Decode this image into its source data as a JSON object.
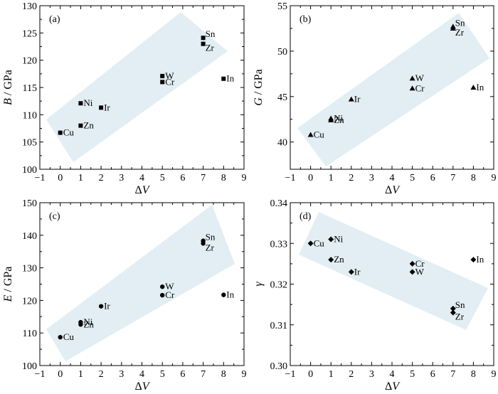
{
  "chart_data": [
    {
      "type": "scatter",
      "panel_label": "(a)",
      "xlabel": "ΔV",
      "ylabel": "B / GPa",
      "ylabel_parts": [
        [
          "B",
          true
        ],
        [
          " / GPa",
          false
        ]
      ],
      "xlim": [
        -1,
        9
      ],
      "ylim": [
        100,
        130
      ],
      "xticks": [
        -1,
        0,
        1,
        2,
        3,
        4,
        5,
        6,
        7,
        8,
        9
      ],
      "yticks": [
        100,
        105,
        110,
        115,
        120,
        125,
        130
      ],
      "marker": "square",
      "points": [
        {
          "label": "Cu",
          "x": 0,
          "y": 106.7
        },
        {
          "label": "Ni",
          "x": 1,
          "y": 112.1
        },
        {
          "label": "Zn",
          "x": 1,
          "y": 108.0
        },
        {
          "label": "Ir",
          "x": 2,
          "y": 111.3
        },
        {
          "label": "W",
          "x": 5,
          "y": 117.1
        },
        {
          "label": "Cr",
          "x": 5,
          "y": 116.0
        },
        {
          "label": "Sn",
          "x": 7,
          "y": 124.1
        },
        {
          "label": "Zr",
          "x": 7,
          "y": 123.0
        },
        {
          "label": "In",
          "x": 8,
          "y": 116.6
        }
      ]
    },
    {
      "type": "scatter",
      "panel_label": "(b)",
      "xlabel": "ΔV",
      "ylabel": "G / GPa",
      "ylabel_parts": [
        [
          "G",
          true
        ],
        [
          " / GPa",
          false
        ]
      ],
      "xlim": [
        -1,
        9
      ],
      "ylim": [
        37,
        55
      ],
      "xticks": [
        -1,
        0,
        1,
        2,
        3,
        4,
        5,
        6,
        7,
        8,
        9
      ],
      "yticks": [
        40,
        45,
        50,
        55
      ],
      "marker": "triangle",
      "points": [
        {
          "label": "Cu",
          "x": 0,
          "y": 40.8
        },
        {
          "label": "Ni",
          "x": 1,
          "y": 42.6
        },
        {
          "label": "Zn",
          "x": 1,
          "y": 42.4
        },
        {
          "label": "Ir",
          "x": 2,
          "y": 44.7
        },
        {
          "label": "W",
          "x": 5,
          "y": 47.0
        },
        {
          "label": "Cr",
          "x": 5,
          "y": 45.9
        },
        {
          "label": "Sn",
          "x": 7,
          "y": 52.7
        },
        {
          "label": "Zr",
          "x": 7,
          "y": 52.5
        },
        {
          "label": "In",
          "x": 8,
          "y": 46.0
        }
      ]
    },
    {
      "type": "scatter",
      "panel_label": "(c)",
      "xlabel": "ΔV",
      "ylabel": "E / GPa",
      "ylabel_parts": [
        [
          "E",
          true
        ],
        [
          " / GPa",
          false
        ]
      ],
      "xlim": [
        -1,
        9
      ],
      "ylim": [
        100,
        150
      ],
      "xticks": [
        -1,
        0,
        1,
        2,
        3,
        4,
        5,
        6,
        7,
        8,
        9
      ],
      "yticks": [
        100,
        110,
        120,
        130,
        140,
        150
      ],
      "marker": "circle",
      "points": [
        {
          "label": "Cu",
          "x": 0,
          "y": 108.7
        },
        {
          "label": "Ni",
          "x": 1,
          "y": 113.3
        },
        {
          "label": "Zn",
          "x": 1,
          "y": 112.6
        },
        {
          "label": "Ir",
          "x": 2,
          "y": 118.2
        },
        {
          "label": "W",
          "x": 5,
          "y": 124.2
        },
        {
          "label": "Cr",
          "x": 5,
          "y": 121.6
        },
        {
          "label": "Sn",
          "x": 7,
          "y": 138.3
        },
        {
          "label": "Zr",
          "x": 7,
          "y": 137.5
        },
        {
          "label": "In",
          "x": 8,
          "y": 121.7
        }
      ]
    },
    {
      "type": "scatter",
      "panel_label": "(d)",
      "xlabel": "ΔV",
      "ylabel": "γ",
      "ylabel_parts": [
        [
          "γ",
          true
        ]
      ],
      "xlim": [
        -1,
        9
      ],
      "ylim": [
        0.3,
        0.34
      ],
      "xticks": [
        -1,
        0,
        1,
        2,
        3,
        4,
        5,
        6,
        7,
        8,
        9
      ],
      "yticks": [
        0.3,
        0.31,
        0.32,
        0.33,
        0.34
      ],
      "ytick_decimals": 2,
      "marker": "diamond",
      "points": [
        {
          "label": "Cu",
          "x": 0,
          "y": 0.33
        },
        {
          "label": "Ni",
          "x": 1,
          "y": 0.331
        },
        {
          "label": "Zn",
          "x": 1,
          "y": 0.326
        },
        {
          "label": "Ir",
          "x": 2,
          "y": 0.323
        },
        {
          "label": "Cr",
          "x": 5,
          "y": 0.325
        },
        {
          "label": "W",
          "x": 5,
          "y": 0.323
        },
        {
          "label": "Sn",
          "x": 7,
          "y": 0.314
        },
        {
          "label": "Zr",
          "x": 7,
          "y": 0.313
        },
        {
          "label": "In",
          "x": 8,
          "y": 0.326
        }
      ]
    }
  ],
  "colors": {
    "band": "#e2eef4",
    "marker": "#000000",
    "axis": "#000000"
  }
}
